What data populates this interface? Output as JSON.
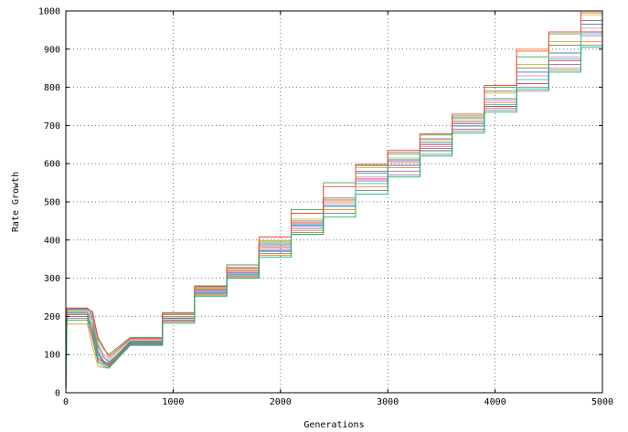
{
  "chart_data": {
    "type": "line",
    "title": "",
    "xlabel": "Generations",
    "ylabel": "Rate Growth",
    "xlim": [
      0,
      5000
    ],
    "ylim": [
      0,
      1000
    ],
    "xticks": [
      0,
      1000,
      2000,
      3000,
      4000,
      5000
    ],
    "yticks": [
      0,
      100,
      200,
      300,
      400,
      500,
      600,
      700,
      800,
      900,
      1000
    ],
    "grid": true,
    "legend": "none",
    "series_colors": [
      "#1f77b4",
      "#ff7f0e",
      "#2ca02c",
      "#d62728",
      "#9467bd",
      "#8c564b",
      "#e377c2",
      "#7f7f7f",
      "#bcbd22",
      "#17becf",
      "#ff3333",
      "#00aa55",
      "#3366cc",
      "#cc6600",
      "#aa2288",
      "#228888",
      "#dd4444",
      "#44aa44"
    ],
    "series": [
      {
        "x": [
          0,
          10,
          200,
          250,
          300,
          350,
          400,
          600,
          900,
          1200,
          1500,
          1800,
          2100,
          2400,
          2700,
          3000,
          3300,
          3600,
          3900,
          4200,
          4500,
          4800,
          5000
        ],
        "y": [
          0,
          220,
          220,
          200,
          120,
          95,
          80,
          130,
          200,
          265,
          315,
          385,
          440,
          500,
          575,
          610,
          655,
          710,
          770,
          840,
          890,
          965,
          965
        ]
      },
      {
        "x": [
          0,
          10,
          200,
          250,
          300,
          350,
          400,
          600,
          900,
          1200,
          1500,
          1800,
          2100,
          2400,
          2700,
          3000,
          3300,
          3600,
          3900,
          4200,
          4500,
          4800,
          5000
        ],
        "y": [
          0,
          180,
          180,
          120,
          70,
          65,
          65,
          125,
          185,
          255,
          305,
          360,
          425,
          480,
          540,
          590,
          635,
          690,
          760,
          900,
          850,
          920,
          920
        ]
      },
      {
        "x": [
          0,
          10,
          200,
          250,
          300,
          350,
          400,
          600,
          900,
          1200,
          1500,
          1800,
          2100,
          2400,
          2700,
          3000,
          3300,
          3600,
          3900,
          4200,
          4500,
          4800,
          5000
        ],
        "y": [
          0,
          215,
          215,
          210,
          140,
          115,
          100,
          145,
          210,
          280,
          335,
          395,
          480,
          550,
          595,
          625,
          675,
          725,
          800,
          880,
          940,
          1000,
          1000
        ]
      },
      {
        "x": [
          0,
          10,
          200,
          250,
          300,
          350,
          400,
          600,
          900,
          1200,
          1500,
          1800,
          2100,
          2400,
          2700,
          3000,
          3300,
          3600,
          3900,
          4200,
          4500,
          4800,
          5000
        ],
        "y": [
          0,
          205,
          205,
          150,
          90,
          80,
          75,
          135,
          195,
          270,
          320,
          380,
          445,
          505,
          560,
          605,
          650,
          705,
          750,
          810,
          870,
          945,
          945
        ]
      },
      {
        "x": [
          0,
          10,
          200,
          250,
          300,
          350,
          400,
          600,
          900,
          1200,
          1500,
          1800,
          2100,
          2400,
          2700,
          3000,
          3300,
          3600,
          3900,
          4200,
          4500,
          4800,
          5000
        ],
        "y": [
          0,
          210,
          210,
          190,
          110,
          85,
          72,
          128,
          190,
          260,
          310,
          370,
          430,
          490,
          555,
          580,
          640,
          690,
          745,
          790,
          860,
          935,
          935
        ]
      },
      {
        "x": [
          0,
          10,
          200,
          250,
          300,
          350,
          400,
          600,
          900,
          1200,
          1500,
          1800,
          2100,
          2400,
          2700,
          3000,
          3300,
          3600,
          3900,
          4200,
          4500,
          4800,
          5000
        ],
        "y": [
          0,
          200,
          200,
          170,
          100,
          78,
          70,
          132,
          205,
          275,
          325,
          390,
          450,
          510,
          580,
          630,
          665,
          720,
          790,
          850,
          910,
          975,
          975
        ]
      },
      {
        "x": [
          0,
          10,
          200,
          250,
          300,
          350,
          400,
          600,
          900,
          1200,
          1500,
          1800,
          2100,
          2400,
          2700,
          3000,
          3300,
          3600,
          3900,
          4200,
          4500,
          4800,
          5000
        ],
        "y": [
          0,
          218,
          218,
          205,
          130,
          100,
          90,
          140,
          200,
          268,
          312,
          375,
          435,
          495,
          565,
          598,
          645,
          700,
          765,
          830,
          880,
          955,
          955
        ]
      },
      {
        "x": [
          0,
          10,
          200,
          250,
          300,
          350,
          400,
          600,
          900,
          1200,
          1500,
          1800,
          2100,
          2400,
          2700,
          3000,
          3300,
          3600,
          3900,
          4200,
          4500,
          4800,
          5000
        ],
        "y": [
          0,
          195,
          195,
          160,
          85,
          75,
          68,
          126,
          188,
          258,
          302,
          365,
          420,
          470,
          530,
          570,
          625,
          685,
          740,
          800,
          845,
          910,
          910
        ]
      },
      {
        "x": [
          0,
          10,
          200,
          250,
          300,
          350,
          400,
          600,
          900,
          1200,
          1500,
          1800,
          2100,
          2400,
          2700,
          3000,
          3300,
          3600,
          3900,
          4200,
          4500,
          4800,
          5000
        ],
        "y": [
          0,
          212,
          212,
          195,
          125,
          92,
          85,
          138,
          198,
          272,
          318,
          398,
          455,
          500,
          590,
          615,
          660,
          715,
          785,
          860,
          920,
          990,
          990
        ]
      },
      {
        "x": [
          0,
          10,
          200,
          250,
          300,
          350,
          400,
          600,
          900,
          1200,
          1500,
          1800,
          2100,
          2400,
          2700,
          3000,
          3300,
          3600,
          3900,
          4200,
          4500,
          4800,
          5000
        ],
        "y": [
          0,
          208,
          208,
          180,
          105,
          82,
          78,
          134,
          194,
          262,
          308,
          372,
          438,
          488,
          548,
          595,
          632,
          698,
          755,
          820,
          875,
          940,
          940
        ]
      },
      {
        "x": [
          0,
          10,
          200,
          250,
          300,
          350,
          400,
          600,
          900,
          1200,
          1500,
          1800,
          2100,
          2400,
          2700,
          3000,
          3300,
          3600,
          3900,
          4200,
          4500,
          4800,
          5000
        ],
        "y": [
          0,
          222,
          222,
          212,
          145,
          120,
          95,
          142,
          208,
          278,
          328,
          408,
          470,
          540,
          598,
          635,
          678,
          730,
          805,
          895,
          945,
          995,
          995
        ]
      },
      {
        "x": [
          0,
          10,
          200,
          250,
          300,
          350,
          400,
          600,
          900,
          1200,
          1500,
          1800,
          2100,
          2400,
          2700,
          3000,
          3300,
          3600,
          3900,
          4200,
          4500,
          4800,
          5000
        ],
        "y": [
          0,
          190,
          190,
          140,
          80,
          70,
          64,
          124,
          182,
          252,
          300,
          355,
          415,
          460,
          520,
          565,
          620,
          680,
          735,
          795,
          840,
          905,
          905
        ]
      }
    ]
  }
}
